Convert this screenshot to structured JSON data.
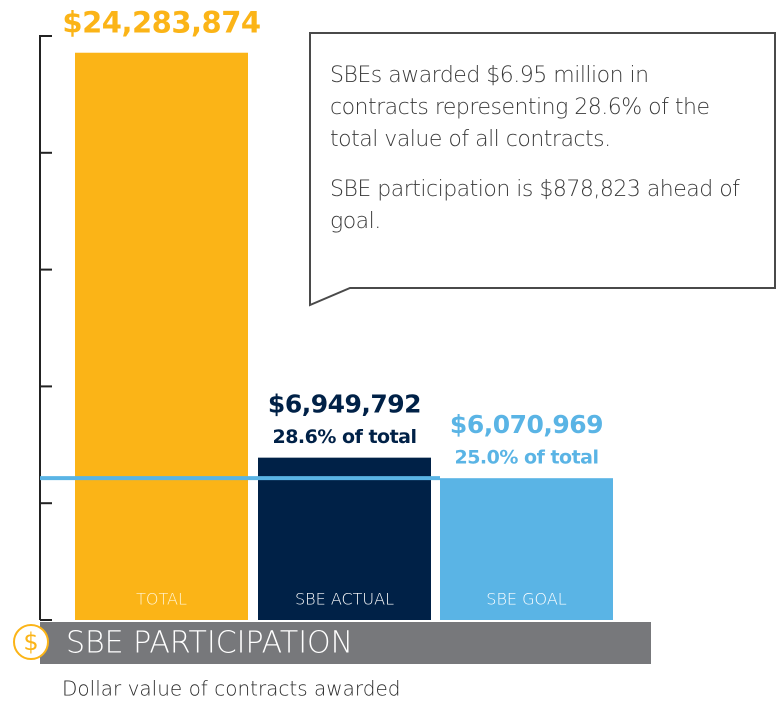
{
  "chart_data": {
    "type": "bar",
    "title": "SBE PARTICIPATION",
    "icon": "$",
    "subtitle": "Dollar value of contracts awarded",
    "categories": [
      "TOTAL",
      "SBE ACTUAL",
      "SBE GOAL"
    ],
    "values": [
      24283874,
      6949792,
      6070969
    ],
    "value_labels": [
      "$24,283,874",
      "$6,949,792",
      "$6,070,969"
    ],
    "share_labels": [
      null,
      "28.6% of total",
      "25.0% of total"
    ],
    "colors": [
      "#fbb417",
      "#002147",
      "#5ab4e5"
    ],
    "ylim": [
      0,
      25000000
    ],
    "yticks": [
      0,
      5000000,
      10000000,
      15000000,
      20000000,
      25000000
    ],
    "annotations": [
      "SBEs awarded $6.95 million in contracts representing 28.6% of the total value of all contracts.",
      "SBE participation is $878,823 ahead of goal."
    ]
  }
}
